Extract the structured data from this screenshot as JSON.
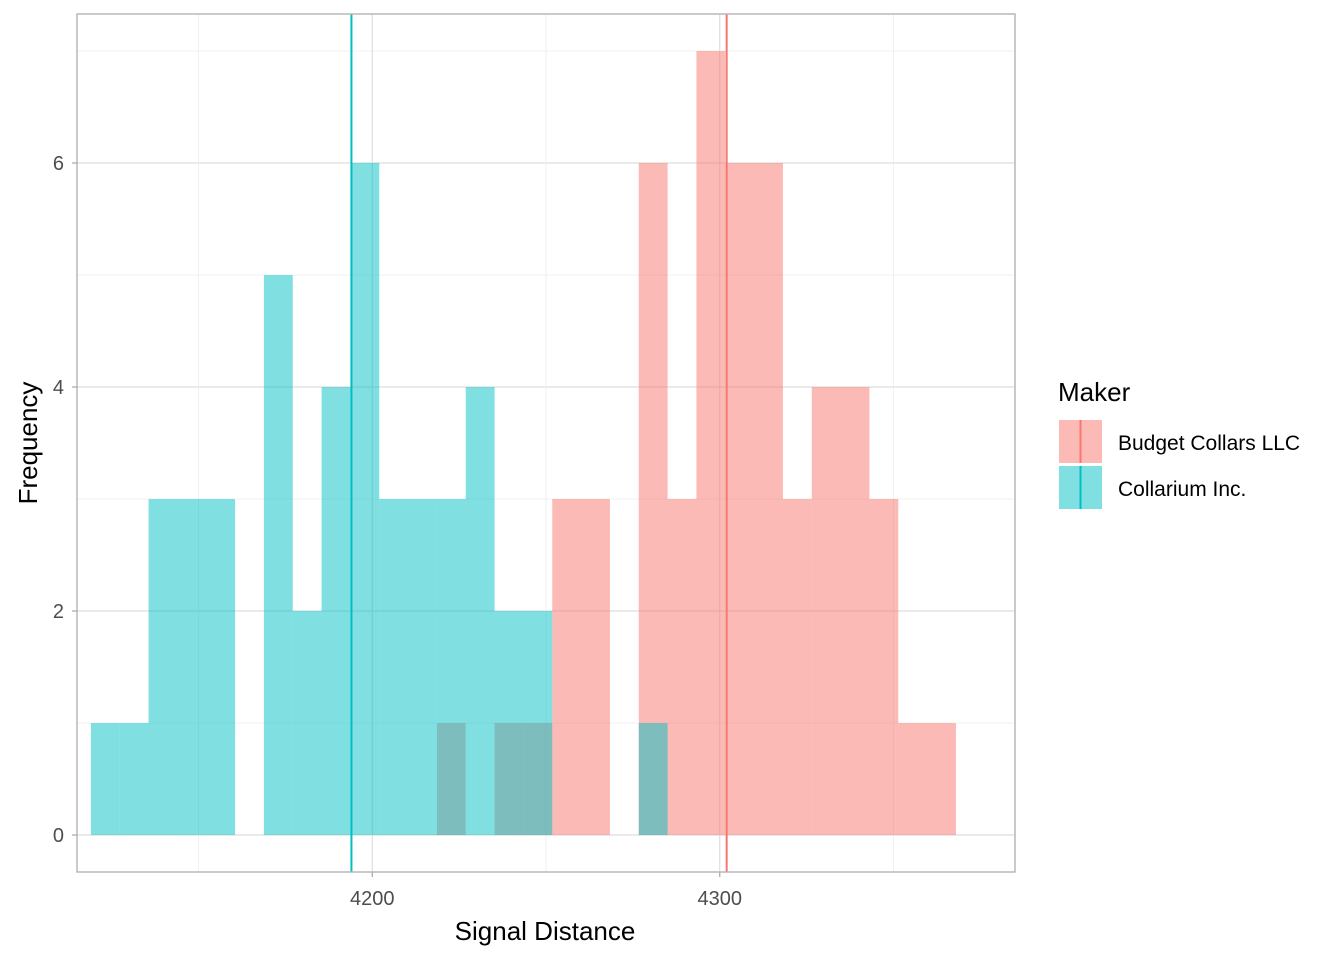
{
  "chart_data": {
    "type": "histogram",
    "xlabel": "Signal Distance",
    "ylabel": "Frequency",
    "xlim": [
      4115,
      4385
    ],
    "ylim": [
      -0.33,
      7.33
    ],
    "x_ticks": [
      4200,
      4300
    ],
    "y_ticks": [
      0,
      2,
      4,
      6
    ],
    "bin_width": 8.3,
    "grid": true,
    "legend": {
      "title": "Maker",
      "position": "right",
      "entries": [
        "Budget Collars LLC",
        "Collarium Inc."
      ]
    },
    "series": [
      {
        "name": "Budget Collars LLC",
        "color": "#F8766D",
        "mean": 4302,
        "bins": [
          {
            "x0": 4218.6,
            "x1": 4226.9,
            "count": 1
          },
          {
            "x0": 4235.2,
            "x1": 4243.5,
            "count": 1
          },
          {
            "x0": 4243.5,
            "x1": 4251.8,
            "count": 1
          },
          {
            "x0": 4251.8,
            "x1": 4260.1,
            "count": 3
          },
          {
            "x0": 4260.1,
            "x1": 4268.4,
            "count": 3
          },
          {
            "x0": 4276.7,
            "x1": 4285.0,
            "count": 6
          },
          {
            "x0": 4285.0,
            "x1": 4293.3,
            "count": 3
          },
          {
            "x0": 4293.3,
            "x1": 4301.6,
            "count": 7
          },
          {
            "x0": 4301.6,
            "x1": 4309.9,
            "count": 6
          },
          {
            "x0": 4309.9,
            "x1": 4318.2,
            "count": 6
          },
          {
            "x0": 4318.2,
            "x1": 4326.5,
            "count": 3
          },
          {
            "x0": 4326.5,
            "x1": 4334.8,
            "count": 4
          },
          {
            "x0": 4334.8,
            "x1": 4343.1,
            "count": 4
          },
          {
            "x0": 4343.1,
            "x1": 4351.4,
            "count": 3
          },
          {
            "x0": 4351.4,
            "x1": 4359.7,
            "count": 1
          },
          {
            "x0": 4359.7,
            "x1": 4368.0,
            "count": 1
          }
        ]
      },
      {
        "name": "Collarium Inc.",
        "color": "#00BFC4",
        "mean": 4194,
        "bins": [
          {
            "x0": 4119.0,
            "x1": 4127.3,
            "count": 1
          },
          {
            "x0": 4127.3,
            "x1": 4135.6,
            "count": 1
          },
          {
            "x0": 4135.6,
            "x1": 4143.9,
            "count": 3
          },
          {
            "x0": 4143.9,
            "x1": 4152.2,
            "count": 3
          },
          {
            "x0": 4152.2,
            "x1": 4160.5,
            "count": 3
          },
          {
            "x0": 4168.8,
            "x1": 4177.1,
            "count": 5
          },
          {
            "x0": 4177.1,
            "x1": 4185.4,
            "count": 2
          },
          {
            "x0": 4185.4,
            "x1": 4193.7,
            "count": 4
          },
          {
            "x0": 4193.7,
            "x1": 4202.0,
            "count": 6
          },
          {
            "x0": 4202.0,
            "x1": 4210.3,
            "count": 3
          },
          {
            "x0": 4210.3,
            "x1": 4218.6,
            "count": 3
          },
          {
            "x0": 4218.6,
            "x1": 4226.9,
            "count": 3
          },
          {
            "x0": 4226.9,
            "x1": 4235.2,
            "count": 4
          },
          {
            "x0": 4235.2,
            "x1": 4243.5,
            "count": 2
          },
          {
            "x0": 4243.5,
            "x1": 4251.8,
            "count": 2
          },
          {
            "x0": 4276.7,
            "x1": 4285.0,
            "count": 1
          }
        ]
      }
    ]
  }
}
